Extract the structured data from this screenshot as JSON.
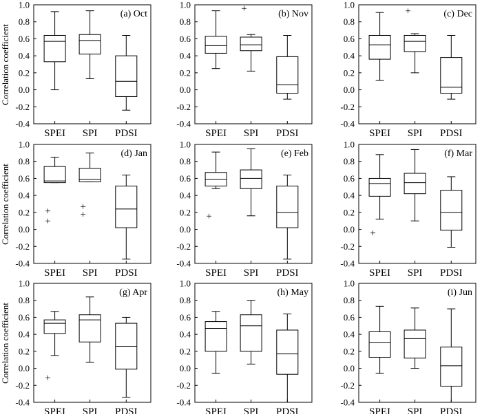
{
  "figure": {
    "y_axis_label": "Correlation coefficient"
  },
  "chart_data": [
    {
      "type": "box",
      "title": "(a) Oct",
      "ylabel": "Correlation coefficient",
      "ylim": [
        -0.4,
        1.0
      ],
      "yticks": [
        "1.0",
        "0.8",
        "0.6",
        "0.4",
        "0.2",
        "0.0",
        "-0.2",
        "-0.4"
      ],
      "categories": [
        "SPEI",
        "SPI",
        "PDSI"
      ],
      "boxes": [
        {
          "label": "SPEI",
          "whisker_low": 0.0,
          "q1": 0.33,
          "median": 0.57,
          "q3": 0.64,
          "whisker_high": 0.92,
          "outliers": []
        },
        {
          "label": "SPI",
          "whisker_low": 0.13,
          "q1": 0.42,
          "median": 0.58,
          "q3": 0.65,
          "whisker_high": 0.93,
          "outliers": []
        },
        {
          "label": "PDSI",
          "whisker_low": -0.24,
          "q1": -0.08,
          "median": 0.1,
          "q3": 0.4,
          "whisker_high": 0.64,
          "outliers": []
        }
      ]
    },
    {
      "type": "box",
      "title": "(b) Nov",
      "ylim": [
        -0.4,
        1.0
      ],
      "yticks": [
        "1.0",
        "0.8",
        "0.6",
        "0.4",
        "0.2",
        "0.0",
        "-0.2",
        "-0.4"
      ],
      "categories": [
        "SPEI",
        "SPI",
        "PDSI"
      ],
      "boxes": [
        {
          "label": "SPEI",
          "whisker_low": 0.25,
          "q1": 0.43,
          "median": 0.52,
          "q3": 0.63,
          "whisker_high": 0.93,
          "outliers": []
        },
        {
          "label": "SPI",
          "whisker_low": 0.22,
          "q1": 0.46,
          "median": 0.53,
          "q3": 0.62,
          "whisker_high": 0.65,
          "outliers": [
            0.96
          ]
        },
        {
          "label": "PDSI",
          "whisker_low": -0.11,
          "q1": -0.04,
          "median": 0.06,
          "q3": 0.39,
          "whisker_high": 0.64,
          "outliers": []
        }
      ]
    },
    {
      "type": "box",
      "title": "(c) Dec",
      "ylim": [
        -0.4,
        1.0
      ],
      "yticks": [
        "1.0",
        "0.8",
        "0.6",
        "0.4",
        "0.2",
        "0.0",
        "-0.2",
        "-0.4"
      ],
      "categories": [
        "SPEI",
        "SPI",
        "PDSI"
      ],
      "boxes": [
        {
          "label": "SPEI",
          "whisker_low": 0.11,
          "q1": 0.36,
          "median": 0.53,
          "q3": 0.64,
          "whisker_high": 0.91,
          "outliers": []
        },
        {
          "label": "SPI",
          "whisker_low": 0.2,
          "q1": 0.45,
          "median": 0.57,
          "q3": 0.64,
          "whisker_high": 0.66,
          "outliers": [
            0.93
          ]
        },
        {
          "label": "PDSI",
          "whisker_low": -0.11,
          "q1": -0.04,
          "median": 0.03,
          "q3": 0.38,
          "whisker_high": 0.64,
          "outliers": []
        }
      ]
    },
    {
      "type": "box",
      "title": "(d) Jan",
      "ylim": [
        -0.4,
        1.0
      ],
      "yticks": [
        "1.0",
        "0.8",
        "0.6",
        "0.4",
        "0.2",
        "0.0",
        "-0.2",
        "-0.4"
      ],
      "categories": [
        "SPEI",
        "SPI",
        "PDSI"
      ],
      "boxes": [
        {
          "label": "SPEI",
          "whisker_low": 0.55,
          "q1": 0.55,
          "median": 0.57,
          "q3": 0.74,
          "whisker_high": 0.85,
          "outliers": [
            0.22,
            0.1
          ]
        },
        {
          "label": "SPI",
          "whisker_low": 0.56,
          "q1": 0.56,
          "median": 0.59,
          "q3": 0.72,
          "whisker_high": 0.9,
          "outliers": [
            0.27,
            0.18
          ]
        },
        {
          "label": "PDSI",
          "whisker_low": -0.35,
          "q1": 0.02,
          "median": 0.24,
          "q3": 0.51,
          "whisker_high": 0.64,
          "outliers": []
        }
      ]
    },
    {
      "type": "box",
      "title": "(e) Feb",
      "ylim": [
        -0.4,
        1.0
      ],
      "yticks": [
        "1.0",
        "0.8",
        "0.6",
        "0.4",
        "0.2",
        "0.0",
        "-0.2",
        "-0.4"
      ],
      "categories": [
        "SPEI",
        "SPI",
        "PDSI"
      ],
      "boxes": [
        {
          "label": "SPEI",
          "whisker_low": 0.48,
          "q1": 0.51,
          "median": 0.59,
          "q3": 0.67,
          "whisker_high": 0.91,
          "outliers": [
            0.16
          ]
        },
        {
          "label": "SPI",
          "whisker_low": 0.16,
          "q1": 0.48,
          "median": 0.6,
          "q3": 0.7,
          "whisker_high": 0.95,
          "outliers": []
        },
        {
          "label": "PDSI",
          "whisker_low": -0.35,
          "q1": 0.02,
          "median": 0.2,
          "q3": 0.51,
          "whisker_high": 0.64,
          "outliers": []
        }
      ]
    },
    {
      "type": "box",
      "title": "(f) Mar",
      "ylim": [
        -0.4,
        1.0
      ],
      "yticks": [
        "1.0",
        "0.8",
        "0.6",
        "0.4",
        "0.2",
        "0.0",
        "-0.2",
        "-0.4"
      ],
      "categories": [
        "SPEI",
        "SPI",
        "PDSI"
      ],
      "boxes": [
        {
          "label": "SPEI",
          "whisker_low": 0.12,
          "q1": 0.39,
          "median": 0.54,
          "q3": 0.6,
          "whisker_high": 0.88,
          "outliers": [
            -0.04
          ]
        },
        {
          "label": "SPI",
          "whisker_low": 0.1,
          "q1": 0.42,
          "median": 0.55,
          "q3": 0.66,
          "whisker_high": 0.94,
          "outliers": []
        },
        {
          "label": "PDSI",
          "whisker_low": -0.21,
          "q1": -0.01,
          "median": 0.2,
          "q3": 0.46,
          "whisker_high": 0.62,
          "outliers": []
        }
      ]
    },
    {
      "type": "box",
      "title": "(g) Apr",
      "ylim": [
        -0.4,
        1.0
      ],
      "yticks": [
        "1.0",
        "0.8",
        "0.6",
        "0.4",
        "0.2",
        "0.0",
        "-0.2",
        "-0.4"
      ],
      "categories": [
        "SPEI",
        "SPI",
        "PDSI"
      ],
      "boxes": [
        {
          "label": "SPEI",
          "whisker_low": 0.15,
          "q1": 0.41,
          "median": 0.53,
          "q3": 0.57,
          "whisker_high": 0.67,
          "outliers": [
            -0.11
          ]
        },
        {
          "label": "SPI",
          "whisker_low": 0.07,
          "q1": 0.31,
          "median": 0.57,
          "q3": 0.63,
          "whisker_high": 0.84,
          "outliers": []
        },
        {
          "label": "PDSI",
          "whisker_low": -0.34,
          "q1": -0.01,
          "median": 0.26,
          "q3": 0.53,
          "whisker_high": 0.6,
          "outliers": []
        }
      ]
    },
    {
      "type": "box",
      "title": "(h) May",
      "ylim": [
        -0.4,
        1.0
      ],
      "yticks": [
        "1.0",
        "0.8",
        "0.6",
        "0.4",
        "0.2",
        "0.0",
        "-0.2",
        "-0.4"
      ],
      "categories": [
        "SPEI",
        "SPI",
        "PDSI"
      ],
      "boxes": [
        {
          "label": "SPEI",
          "whisker_low": -0.06,
          "q1": 0.2,
          "median": 0.47,
          "q3": 0.55,
          "whisker_high": 0.67,
          "outliers": []
        },
        {
          "label": "SPI",
          "whisker_low": 0.05,
          "q1": 0.2,
          "median": 0.5,
          "q3": 0.63,
          "whisker_high": 0.8,
          "outliers": []
        },
        {
          "label": "PDSI",
          "whisker_low": -0.4,
          "q1": -0.07,
          "median": 0.17,
          "q3": 0.45,
          "whisker_high": 0.64,
          "outliers": []
        }
      ]
    },
    {
      "type": "box",
      "title": "(i) Jun",
      "ylim": [
        -0.4,
        1.0
      ],
      "yticks": [
        "1.0",
        "0.8",
        "0.6",
        "0.4",
        "0.2",
        "0.0",
        "-0.2",
        "-0.4"
      ],
      "categories": [
        "SPEI",
        "SPI",
        "PDSI"
      ],
      "boxes": [
        {
          "label": "SPEI",
          "whisker_low": -0.06,
          "q1": 0.13,
          "median": 0.3,
          "q3": 0.43,
          "whisker_high": 0.73,
          "outliers": []
        },
        {
          "label": "SPI",
          "whisker_low": 0.0,
          "q1": 0.12,
          "median": 0.35,
          "q3": 0.45,
          "whisker_high": 0.71,
          "outliers": []
        },
        {
          "label": "PDSI",
          "whisker_low": -0.4,
          "q1": -0.21,
          "median": 0.03,
          "q3": 0.25,
          "whisker_high": 0.7,
          "outliers": []
        }
      ]
    }
  ]
}
